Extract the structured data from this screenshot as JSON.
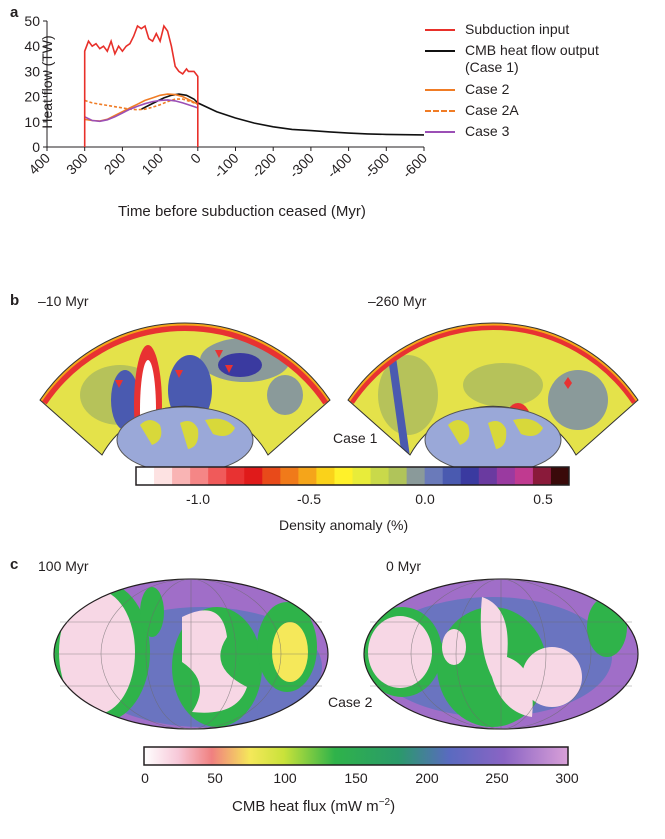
{
  "panel_a": {
    "label": "a",
    "legend": [
      {
        "label": "Subduction input",
        "color": "#e8302a",
        "style": "solid"
      },
      {
        "label": "CMB heat flow output",
        "label2": "(Case 1)",
        "color": "#111111",
        "style": "solid"
      },
      {
        "label": "Case 2",
        "color": "#f07c25",
        "style": "solid"
      },
      {
        "label": "Case 2A",
        "color": "#f07c25",
        "style": "dashed"
      },
      {
        "label": "Case 3",
        "color": "#9b4fb5",
        "style": "solid"
      }
    ]
  },
  "chart_data": {
    "type": "line",
    "xlabel": "Time before subduction ceased (Myr)",
    "ylabel": "Heat flow (TW)",
    "xlim": [
      400,
      -600
    ],
    "ylim": [
      0,
      50
    ],
    "xticks": [
      "400",
      "300",
      "200",
      "100",
      "0",
      "-100",
      "-200",
      "-300",
      "-400",
      "-500",
      "-600"
    ],
    "yticks": [
      "0",
      "10",
      "20",
      "30",
      "40",
      "50"
    ],
    "series": [
      {
        "name": "Subduction input",
        "color": "#e8302a",
        "x": [
          300,
          300,
          290,
          280,
          270,
          260,
          250,
          240,
          230,
          220,
          210,
          200,
          190,
          180,
          170,
          160,
          150,
          140,
          130,
          120,
          110,
          100,
          90,
          80,
          70,
          60,
          50,
          40,
          30,
          25,
          20,
          10,
          5,
          0,
          0
        ],
        "y": [
          0,
          38,
          42,
          40,
          41,
          39,
          40,
          38,
          42,
          37,
          40,
          38,
          40,
          41,
          44,
          48,
          47,
          48,
          43,
          42,
          45,
          42,
          48,
          46,
          40,
          32,
          30,
          29,
          31,
          30,
          30,
          30,
          29,
          28,
          0
        ]
      },
      {
        "name": "CMB heat flow output",
        "color": "#111111",
        "x": [
          150,
          130,
          110,
          90,
          70,
          50,
          30,
          10,
          0,
          -50,
          -100,
          -150,
          -200,
          -250,
          -300,
          -350,
          -400,
          -450,
          -500,
          -550,
          -600
        ],
        "y": [
          15,
          16.5,
          18,
          19.5,
          20.5,
          21,
          20.5,
          19,
          17.5,
          14,
          11.5,
          9.5,
          8,
          7,
          6.5,
          6,
          5.5,
          5.2,
          5,
          4.9,
          4.8
        ]
      },
      {
        "name": "Case 2",
        "color": "#f07c25",
        "x": [
          300,
          280,
          260,
          240,
          220,
          200,
          180,
          160,
          140,
          120,
          100,
          80,
          60,
          40,
          20,
          0
        ],
        "y": [
          11,
          10.5,
          10.3,
          11,
          12.5,
          14,
          15.5,
          17,
          18.5,
          19.5,
          20.5,
          21,
          20.8,
          20,
          18.5,
          17
        ]
      },
      {
        "name": "Case 2A",
        "color": "#f07c25",
        "dashed": true,
        "x": [
          300,
          280,
          260,
          240,
          220,
          200,
          180,
          160,
          140,
          120,
          100,
          80,
          60,
          40,
          20,
          0
        ],
        "y": [
          18.5,
          17.5,
          17,
          16.5,
          16,
          15.5,
          15,
          14.8,
          15,
          15.8,
          16.8,
          18,
          19,
          19,
          18,
          17
        ]
      },
      {
        "name": "Case 3",
        "color": "#9b4fb5",
        "x": [
          300,
          280,
          260,
          240,
          220,
          200,
          180,
          160,
          140,
          120,
          100,
          80,
          60,
          40,
          20,
          0
        ],
        "y": [
          12,
          10.5,
          10.2,
          10.8,
          12,
          13.5,
          15,
          16.2,
          17.2,
          18,
          18.5,
          18.7,
          18.3,
          17.5,
          16.5,
          15.5
        ]
      }
    ]
  },
  "panel_b": {
    "label": "b",
    "left_time": "–10 Myr",
    "right_time": "–260 Myr",
    "case_label": "Case 1",
    "colorbar": {
      "ticks": [
        "-1.0",
        "-0.5",
        "0.0",
        "0.5"
      ],
      "title": "Density anomaly (%)",
      "colors": [
        "#ffffff",
        "#fde2e2",
        "#f9b4b4",
        "#f58686",
        "#f05a5a",
        "#e83232",
        "#e01a1a",
        "#e84a1a",
        "#f07a1a",
        "#f5a51a",
        "#fad21a",
        "#fff12a",
        "#e8ec3a",
        "#c9d94a",
        "#b0c45a",
        "#8a9a9a",
        "#6a7aba",
        "#4a5ab0",
        "#3a3aa0",
        "#6a3aa0",
        "#9a3aa0",
        "#c03a90",
        "#8a1a3a",
        "#3a0a0a"
      ]
    }
  },
  "panel_c": {
    "label": "c",
    "left_time": "100 Myr",
    "right_time": "0 Myr",
    "case_label": "Case 2",
    "colorbar": {
      "ticks": [
        "0",
        "50",
        "100",
        "150",
        "200",
        "250",
        "300"
      ],
      "title": "CMB heat flux (mW m",
      "title_sup": "−2",
      "title_end": ")"
    }
  }
}
